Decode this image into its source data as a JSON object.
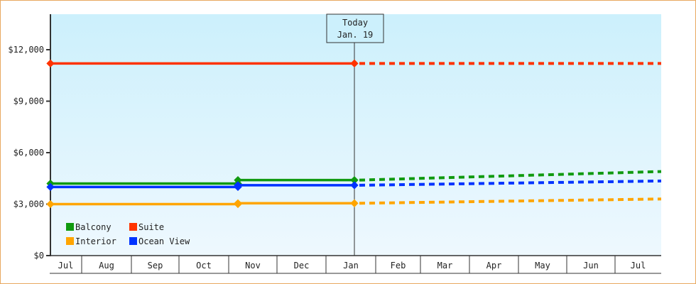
{
  "chart_data": {
    "type": "line",
    "title": "",
    "xlabel": "",
    "ylabel": "",
    "ylim": [
      0,
      14000
    ],
    "yticks": [
      0,
      3000,
      6000,
      9000,
      12000
    ],
    "ytick_labels": [
      "$0",
      "$3,000",
      "$6,000",
      "$9,000",
      "$12,000"
    ],
    "x_categories": [
      "Jul",
      "Aug",
      "Sep",
      "Oct",
      "Nov",
      "Dec",
      "Jan",
      "Feb",
      "Mar",
      "Apr",
      "May",
      "Jun",
      "Jul"
    ],
    "today_marker": {
      "line1": "Today",
      "line2": "Jan. 19"
    },
    "legend": [
      {
        "name": "Balcony",
        "color": "#109a10"
      },
      {
        "name": "Suite",
        "color": "#ff3300"
      },
      {
        "name": "Interior",
        "color": "#ffa500"
      },
      {
        "name": "Ocean View",
        "color": "#0033ff"
      }
    ],
    "grid": false,
    "legend_position": "bottom-left inside",
    "series": [
      {
        "name": "Suite",
        "color": "#ff3300",
        "actual": [
          {
            "x": "Jul (start)",
            "y": 11200
          },
          {
            "x": "Jan 19",
            "y": 11200
          }
        ],
        "projected": [
          {
            "x": "Jan 19",
            "y": 11200
          },
          {
            "x": "Jul (end)",
            "y": 11200
          }
        ]
      },
      {
        "name": "Balcony",
        "color": "#109a10",
        "actual": [
          {
            "x": "Jul (start)",
            "y": 4200
          },
          {
            "x": "Nov (early)",
            "y": 4200
          },
          {
            "x": "Nov (early)",
            "y": 4400
          },
          {
            "x": "Jan 19",
            "y": 4400
          }
        ],
        "projected": [
          {
            "x": "Jan 19",
            "y": 4400
          },
          {
            "x": "Jul (end)",
            "y": 4900
          }
        ]
      },
      {
        "name": "Ocean View",
        "color": "#0033ff",
        "actual": [
          {
            "x": "Jul (start)",
            "y": 4000
          },
          {
            "x": "Nov (early)",
            "y": 4000
          },
          {
            "x": "Nov (early)",
            "y": 4100
          },
          {
            "x": "Jan 19",
            "y": 4100
          }
        ],
        "projected": [
          {
            "x": "Jan 19",
            "y": 4100
          },
          {
            "x": "Jul (end)",
            "y": 4350
          }
        ]
      },
      {
        "name": "Interior",
        "color": "#ffa500",
        "actual": [
          {
            "x": "Jul (start)",
            "y": 3000
          },
          {
            "x": "Nov (early)",
            "y": 3000
          },
          {
            "x": "Nov (early)",
            "y": 3050
          },
          {
            "x": "Jan 19",
            "y": 3050
          }
        ],
        "projected": [
          {
            "x": "Jan 19",
            "y": 3050
          },
          {
            "x": "Jul (end)",
            "y": 3300
          }
        ]
      }
    ]
  },
  "ui": {
    "frame_color": "#e8a860",
    "plot_bg_top": "#ccf0fc",
    "plot_bg_bottom": "#eef8fe"
  }
}
